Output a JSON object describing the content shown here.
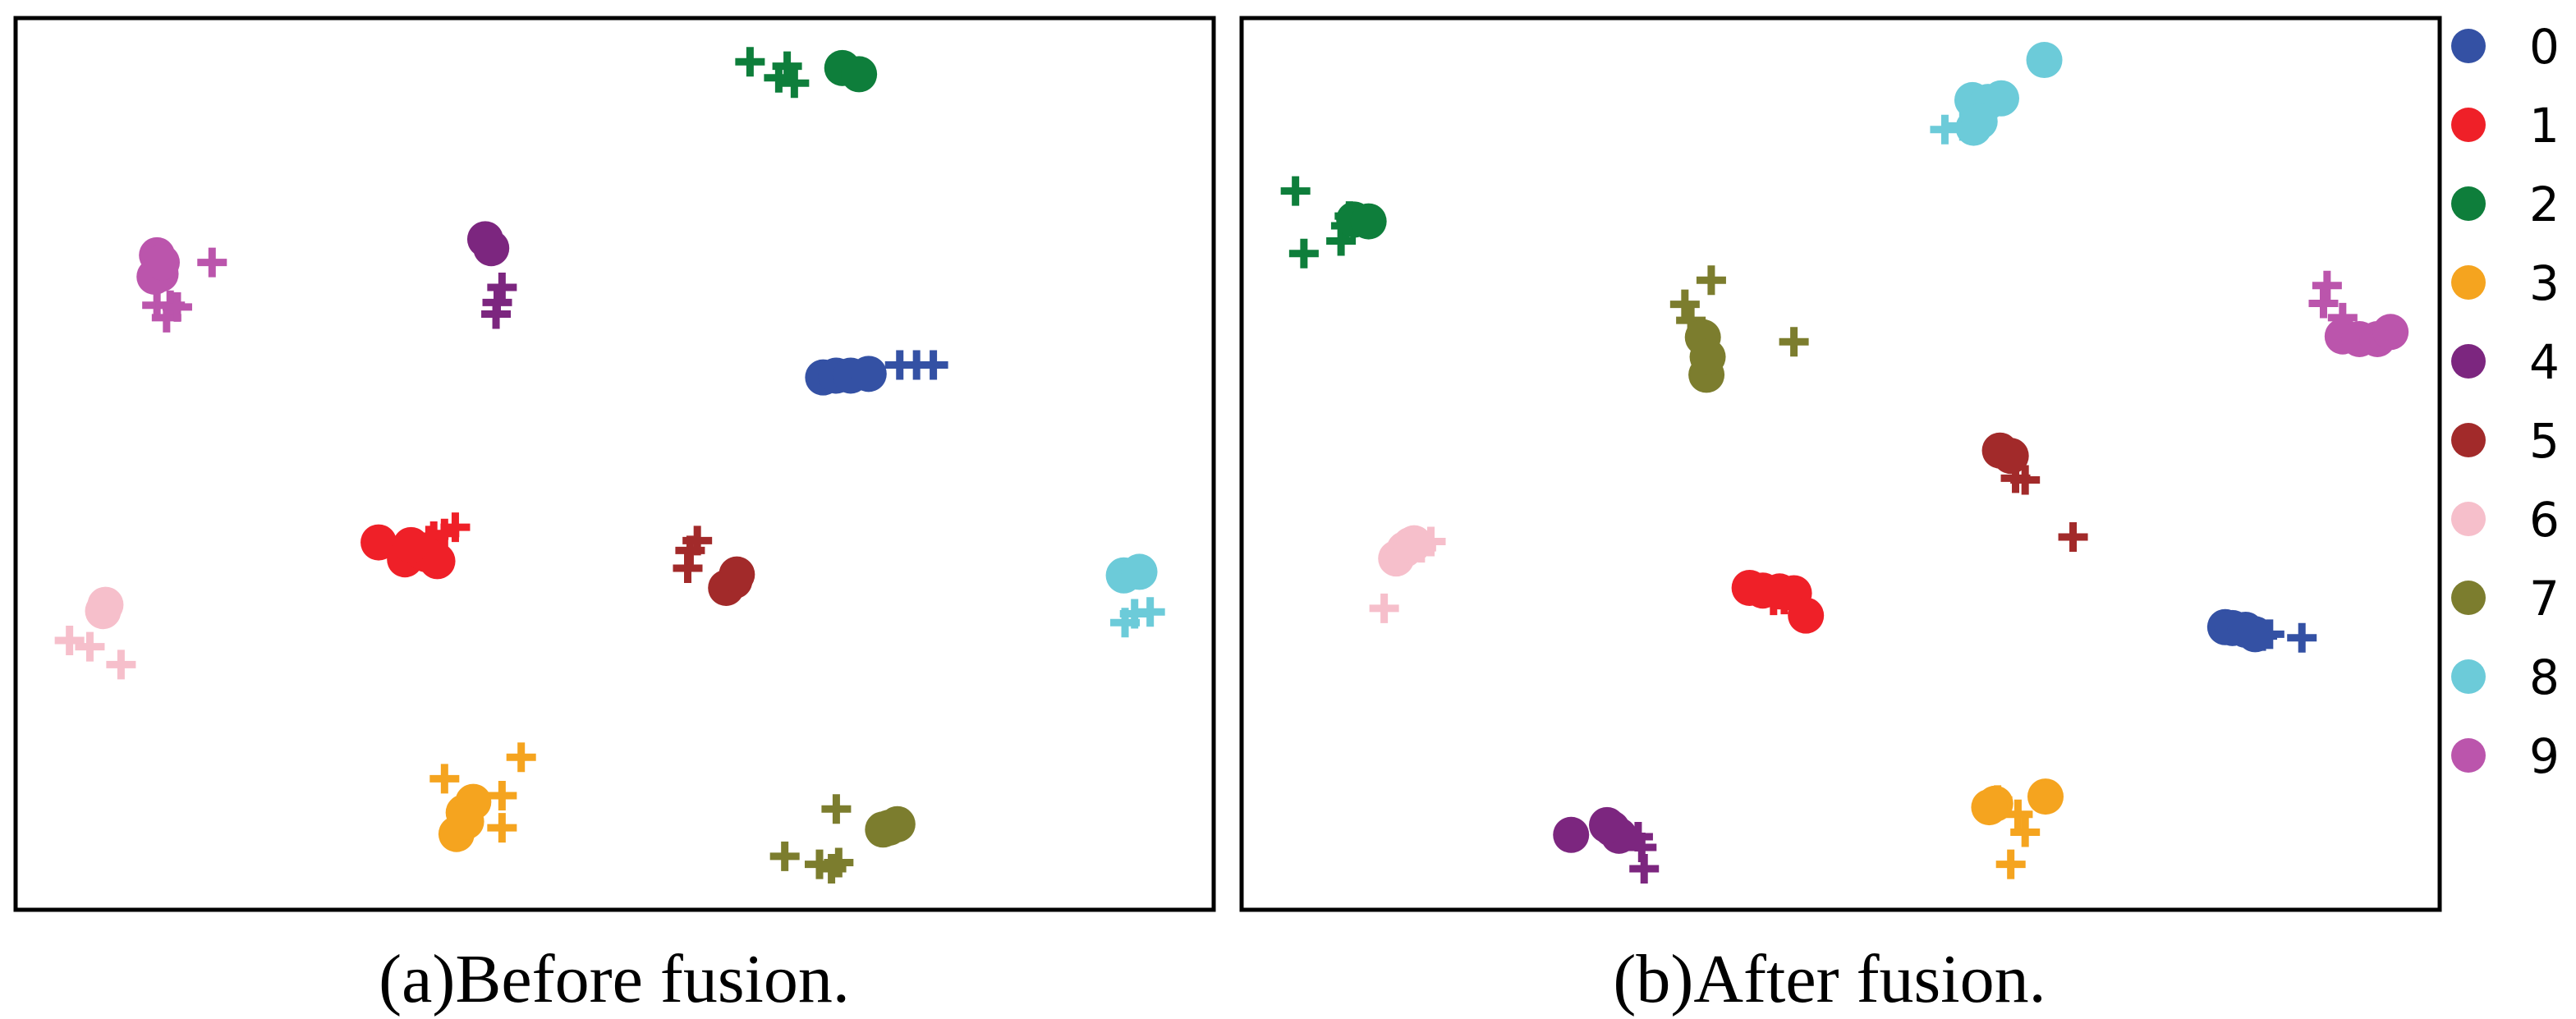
{
  "figure": {
    "captions": [
      "(a)Before fusion.",
      "(b)After fusion."
    ]
  },
  "legend": {
    "items": [
      {
        "label": "0",
        "color": "#3451a4"
      },
      {
        "label": "1",
        "color": "#ef2028"
      },
      {
        "label": "2",
        "color": "#0e7e3b"
      },
      {
        "label": "3",
        "color": "#f5a41f"
      },
      {
        "label": "4",
        "color": "#7c267f"
      },
      {
        "label": "5",
        "color": "#a22a2a"
      },
      {
        "label": "6",
        "color": "#f6bfcb"
      },
      {
        "label": "7",
        "color": "#7c7d2e"
      },
      {
        "label": "8",
        "color": "#6ccbd9"
      },
      {
        "label": "9",
        "color": "#bb55ac"
      }
    ]
  },
  "chart_data": [
    {
      "type": "scatter",
      "title": "(a)Before fusion.",
      "xlabel": "",
      "ylabel": "",
      "xlim": [
        0,
        100
      ],
      "ylim": [
        0,
        100
      ],
      "axes_ticks": false,
      "grid": false,
      "legend": "shared, right of panel (b)",
      "marker_encoding": {
        "circle": "filled circle marker",
        "plus": "plus marker"
      },
      "series": [
        {
          "name": "0",
          "color": "#3451a4",
          "circle": [
            [
              67.4,
              59.7
            ],
            [
              68.5,
              59.9
            ],
            [
              69.7,
              59.9
            ],
            [
              71.2,
              60.1
            ]
          ],
          "plus": [
            [
              73.8,
              61.1
            ],
            [
              75.2,
              61.1
            ],
            [
              76.6,
              61.1
            ]
          ]
        },
        {
          "name": "1",
          "color": "#ef2028",
          "circle": [
            [
              30.3,
              41.2
            ],
            [
              32.5,
              39.3
            ],
            [
              34.2,
              39.9
            ],
            [
              35.2,
              39.1
            ],
            [
              33.0,
              40.9
            ]
          ],
          "plus": [
            [
              34.5,
              41.4
            ],
            [
              35.8,
              42.2
            ],
            [
              36.7,
              42.9
            ],
            [
              34.9,
              41.9
            ]
          ]
        },
        {
          "name": "2",
          "color": "#0e7e3b",
          "circle": [
            [
              69.0,
              94.4
            ],
            [
              70.4,
              93.7
            ]
          ],
          "plus": [
            [
              61.3,
              95.1
            ],
            [
              64.4,
              94.6
            ],
            [
              63.7,
              93.3
            ],
            [
              65.0,
              92.7
            ]
          ]
        },
        {
          "name": "3",
          "color": "#f5a41f",
          "circle": [
            [
              37.4,
              10.9
            ],
            [
              38.2,
              12.1
            ],
            [
              36.8,
              8.5
            ],
            [
              37.6,
              9.9
            ]
          ],
          "plus": [
            [
              35.8,
              14.7
            ],
            [
              42.2,
              17.1
            ],
            [
              40.6,
              12.8
            ],
            [
              40.6,
              9.2
            ]
          ]
        },
        {
          "name": "4",
          "color": "#7c267f",
          "circle": [
            [
              39.2,
              75.2
            ],
            [
              39.7,
              74.2
            ]
          ],
          "plus": [
            [
              40.2,
              68.1
            ],
            [
              40.6,
              69.8
            ],
            [
              40.1,
              66.8
            ]
          ]
        },
        {
          "name": "5",
          "color": "#a22a2a",
          "circle": [
            [
              60.0,
              36.9
            ],
            [
              59.3,
              36.1
            ],
            [
              60.2,
              37.6
            ]
          ],
          "plus": [
            [
              56.3,
              40.3
            ],
            [
              56.1,
              38.3
            ],
            [
              56.9,
              41.4
            ]
          ]
        },
        {
          "name": "6",
          "color": "#f6bfcb",
          "circle": [
            [
              7.3,
              33.5
            ],
            [
              7.5,
              34.2
            ]
          ],
          "plus": [
            [
              4.5,
              30.2
            ],
            [
              6.2,
              29.5
            ],
            [
              8.8,
              27.5
            ]
          ]
        },
        {
          "name": "7",
          "color": "#7c7d2e",
          "circle": [
            [
              72.4,
              9.0
            ],
            [
              73.6,
              9.6
            ],
            [
              72.9,
              9.2
            ]
          ],
          "plus": [
            [
              68.5,
              11.3
            ],
            [
              64.2,
              6.0
            ],
            [
              67.1,
              5.1
            ],
            [
              68.1,
              4.6
            ],
            [
              68.7,
              5.3
            ]
          ]
        },
        {
          "name": "8",
          "color": "#6ccbd9",
          "circle": [
            [
              92.5,
              37.5
            ],
            [
              93.8,
              37.9
            ]
          ],
          "plus": [
            [
              94.7,
              33.4
            ],
            [
              92.6,
              32.2
            ],
            [
              93.4,
              33.2
            ]
          ]
        },
        {
          "name": "9",
          "color": "#bb55ac",
          "circle": [
            [
              11.8,
              73.4
            ],
            [
              12.1,
              71.3
            ],
            [
              11.6,
              71.0
            ],
            [
              12.2,
              72.6
            ]
          ],
          "plus": [
            [
              16.4,
              72.6
            ],
            [
              11.8,
              67.8
            ],
            [
              12.9,
              67.8
            ],
            [
              12.6,
              66.4
            ],
            [
              13.5,
              67.6
            ]
          ]
        }
      ]
    },
    {
      "type": "scatter",
      "title": "(b)After fusion.",
      "xlabel": "",
      "ylabel": "",
      "xlim": [
        0,
        100
      ],
      "ylim": [
        0,
        100
      ],
      "axes_ticks": false,
      "grid": false,
      "legend": "shared, right of panel (b)",
      "marker_encoding": {
        "circle": "filled circle marker",
        "plus": "plus marker"
      },
      "series": [
        {
          "name": "0",
          "color": "#3451a4",
          "circle": [
            [
              82.1,
              31.7
            ],
            [
              82.7,
              31.6
            ],
            [
              83.8,
              31.4
            ],
            [
              84.6,
              30.9
            ]
          ],
          "plus": [
            [
              85.2,
              30.7
            ],
            [
              88.5,
              30.5
            ],
            [
              85.8,
              30.9
            ]
          ]
        },
        {
          "name": "1",
          "color": "#ef2028",
          "circle": [
            [
              42.4,
              36.1
            ],
            [
              43.5,
              35.8
            ],
            [
              44.9,
              35.7
            ],
            [
              46.1,
              35.5
            ],
            [
              47.1,
              33.0
            ]
          ],
          "plus": [
            [
              44.4,
              34.7
            ],
            [
              45.3,
              34.8
            ],
            [
              46.2,
              35.3
            ]
          ]
        },
        {
          "name": "2",
          "color": "#0e7e3b",
          "circle": [
            [
              9.4,
              77.4
            ],
            [
              10.6,
              77.2
            ]
          ],
          "plus": [
            [
              4.5,
              80.6
            ],
            [
              5.2,
              73.6
            ],
            [
              8.3,
              75.0
            ],
            [
              8.7,
              76.7
            ],
            [
              9.0,
              77.8
            ]
          ]
        },
        {
          "name": "3",
          "color": "#f5a41f",
          "circle": [
            [
              62.9,
              11.9
            ],
            [
              62.4,
              11.5
            ],
            [
              67.1,
              12.7
            ]
          ],
          "plus": [
            [
              63.1,
              12.3
            ],
            [
              65.4,
              8.7
            ],
            [
              64.8,
              10.7
            ],
            [
              64.2,
              5.1
            ]
          ]
        },
        {
          "name": "4",
          "color": "#7c267f",
          "circle": [
            [
              27.5,
              8.4
            ],
            [
              30.9,
              9.1
            ],
            [
              31.5,
              8.3
            ],
            [
              30.5,
              9.5
            ]
          ],
          "plus": [
            [
              33.1,
              8.2
            ],
            [
              33.4,
              7.0
            ],
            [
              33.6,
              4.6
            ]
          ]
        },
        {
          "name": "5",
          "color": "#a22a2a",
          "circle": [
            [
              63.3,
              51.5
            ],
            [
              64.2,
              50.9
            ]
          ],
          "plus": [
            [
              65.4,
              48.2
            ],
            [
              64.6,
              48.4
            ],
            [
              69.4,
              41.8
            ]
          ]
        },
        {
          "name": "6",
          "color": "#f6bfcb",
          "circle": [
            [
              12.9,
              39.4
            ],
            [
              13.6,
              40.4
            ],
            [
              14.1,
              40.9
            ],
            [
              14.4,
              41.1
            ]
          ],
          "plus": [
            [
              15.8,
              41.3
            ],
            [
              11.9,
              33.8
            ],
            [
              15.0,
              40.6
            ]
          ]
        },
        {
          "name": "7",
          "color": "#7c7d2e",
          "circle": [
            [
              38.5,
              64.2
            ],
            [
              38.8,
              60.0
            ],
            [
              38.9,
              62.0
            ]
          ],
          "plus": [
            [
              37.0,
              67.9
            ],
            [
              39.2,
              70.6
            ],
            [
              46.1,
              63.7
            ],
            [
              37.5,
              66.1
            ]
          ]
        },
        {
          "name": "8",
          "color": "#6ccbd9",
          "circle": [
            [
              61.0,
              90.8
            ],
            [
              61.1,
              87.7
            ],
            [
              62.3,
              90.6
            ],
            [
              63.4,
              91.0
            ],
            [
              67.0,
              95.3
            ],
            [
              61.6,
              88.4
            ]
          ],
          "plus": [
            [
              58.7,
              87.5
            ],
            [
              60.2,
              87.9
            ]
          ]
        },
        {
          "name": "9",
          "color": "#bb55ac",
          "circle": [
            [
              91.9,
              64.3
            ],
            [
              93.3,
              64.0
            ],
            [
              94.8,
              64.0
            ],
            [
              95.9,
              64.8
            ]
          ],
          "plus": [
            [
              90.3,
              68.0
            ],
            [
              90.6,
              70.0
            ],
            [
              91.9,
              66.4
            ]
          ]
        }
      ]
    }
  ]
}
